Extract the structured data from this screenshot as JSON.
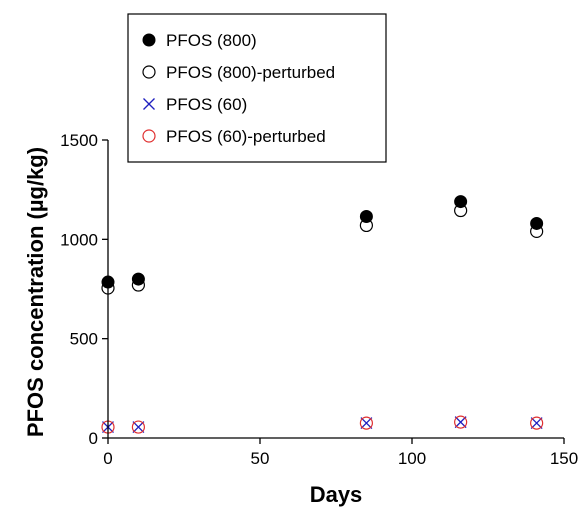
{
  "chart_data": {
    "type": "scatter",
    "xlabel": "Days",
    "ylabel": "PFOS concentration (µg/kg)",
    "xlim": [
      0,
      150
    ],
    "ylim": [
      0,
      1500
    ],
    "xticks": [
      0,
      50,
      100,
      150
    ],
    "yticks": [
      0,
      500,
      1000,
      1500
    ],
    "grid": false,
    "legend_position": "top-left",
    "series": [
      {
        "name": "PFOS (800)",
        "marker": "filled-circle",
        "color": "#000000",
        "points": [
          [
            0,
            785
          ],
          [
            10,
            800
          ],
          [
            85,
            1115
          ],
          [
            116,
            1190
          ],
          [
            141,
            1080
          ]
        ]
      },
      {
        "name": "PFOS (800)-perturbed",
        "marker": "open-circle",
        "color": "#000000",
        "points": [
          [
            0,
            755
          ],
          [
            10,
            770
          ],
          [
            85,
            1070
          ],
          [
            116,
            1145
          ],
          [
            141,
            1040
          ]
        ]
      },
      {
        "name": "PFOS (60)",
        "marker": "cross",
        "color": "#1f1fbf",
        "points": [
          [
            0,
            55
          ],
          [
            10,
            55
          ],
          [
            85,
            75
          ],
          [
            116,
            80
          ],
          [
            141,
            75
          ]
        ]
      },
      {
        "name": "PFOS (60)-perturbed",
        "marker": "open-circle",
        "color": "#e03030",
        "points": [
          [
            0,
            55
          ],
          [
            10,
            55
          ],
          [
            85,
            75
          ],
          [
            116,
            80
          ],
          [
            141,
            75
          ]
        ]
      }
    ]
  }
}
